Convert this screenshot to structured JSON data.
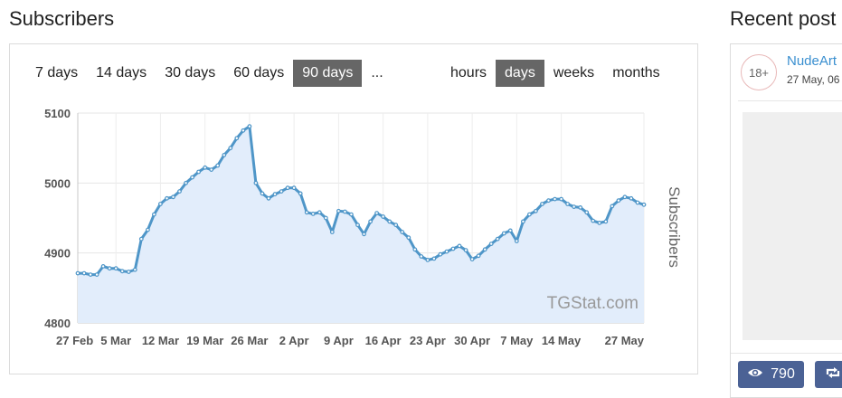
{
  "subscribers_title": "Subscribers",
  "recent_title": "Recent post",
  "ranges": {
    "periods": [
      {
        "label": "7 days",
        "active": false
      },
      {
        "label": "14 days",
        "active": false
      },
      {
        "label": "30 days",
        "active": false
      },
      {
        "label": "60 days",
        "active": false
      },
      {
        "label": "90 days",
        "active": true
      },
      {
        "label": "...",
        "active": false
      }
    ],
    "granularity": [
      {
        "label": "hours",
        "active": false
      },
      {
        "label": "days",
        "active": true
      },
      {
        "label": "weeks",
        "active": false
      },
      {
        "label": "months",
        "active": false
      }
    ]
  },
  "chart_data": {
    "type": "area",
    "ylabel": "Subscribers",
    "credit": "TGStat.com",
    "ylim": [
      4800,
      5100
    ],
    "yticks": [
      4800,
      4900,
      5000,
      5100
    ],
    "xlim": [
      "2018-02-27",
      "2018-05-27"
    ],
    "xtick_labels": [
      "27 Feb",
      "5 Mar",
      "12 Mar",
      "19 Mar",
      "26 Mar",
      "2 Apr",
      "9 Apr",
      "16 Apr",
      "23 Apr",
      "30 Apr",
      "7 May",
      "14 May",
      "27 May"
    ],
    "xtick_dates": [
      "2018-02-27",
      "2018-03-05",
      "2018-03-12",
      "2018-03-19",
      "2018-03-26",
      "2018-04-02",
      "2018-04-09",
      "2018-04-16",
      "2018-04-23",
      "2018-04-30",
      "2018-05-07",
      "2018-05-14",
      "2018-05-27"
    ],
    "grid": true,
    "series": [
      {
        "values": [
          [
            "2018-02-27",
            4871
          ],
          [
            "2018-02-28",
            4871
          ],
          [
            "2018-03-01",
            4869
          ],
          [
            "2018-03-02",
            4869
          ],
          [
            "2018-03-03",
            4881
          ],
          [
            "2018-03-04",
            4878
          ],
          [
            "2018-03-05",
            4878
          ],
          [
            "2018-03-06",
            4874
          ],
          [
            "2018-03-07",
            4873
          ],
          [
            "2018-03-08",
            4876
          ],
          [
            "2018-03-09",
            4920
          ],
          [
            "2018-03-10",
            4933
          ],
          [
            "2018-03-11",
            4955
          ],
          [
            "2018-03-12",
            4970
          ],
          [
            "2018-03-13",
            4978
          ],
          [
            "2018-03-14",
            4980
          ],
          [
            "2018-03-15",
            4988
          ],
          [
            "2018-03-16",
            5000
          ],
          [
            "2018-03-17",
            5008
          ],
          [
            "2018-03-18",
            5016
          ],
          [
            "2018-03-19",
            5022
          ],
          [
            "2018-03-20",
            5019
          ],
          [
            "2018-03-21",
            5025
          ],
          [
            "2018-03-22",
            5040
          ],
          [
            "2018-03-23",
            5050
          ],
          [
            "2018-03-24",
            5064
          ],
          [
            "2018-03-25",
            5075
          ],
          [
            "2018-03-26",
            5081
          ],
          [
            "2018-03-27",
            5000
          ],
          [
            "2018-03-28",
            4985
          ],
          [
            "2018-03-29",
            4978
          ],
          [
            "2018-03-30",
            4984
          ],
          [
            "2018-03-31",
            4988
          ],
          [
            "2018-04-01",
            4993
          ],
          [
            "2018-04-02",
            4993
          ],
          [
            "2018-04-03",
            4985
          ],
          [
            "2018-04-04",
            4958
          ],
          [
            "2018-04-05",
            4956
          ],
          [
            "2018-04-06",
            4958
          ],
          [
            "2018-04-07",
            4950
          ],
          [
            "2018-04-08",
            4930
          ],
          [
            "2018-04-09",
            4960
          ],
          [
            "2018-04-10",
            4959
          ],
          [
            "2018-04-11",
            4955
          ],
          [
            "2018-04-12",
            4940
          ],
          [
            "2018-04-13",
            4927
          ],
          [
            "2018-04-14",
            4945
          ],
          [
            "2018-04-15",
            4957
          ],
          [
            "2018-04-16",
            4952
          ],
          [
            "2018-04-17",
            4945
          ],
          [
            "2018-04-18",
            4940
          ],
          [
            "2018-04-19",
            4930
          ],
          [
            "2018-04-20",
            4922
          ],
          [
            "2018-04-21",
            4905
          ],
          [
            "2018-04-22",
            4895
          ],
          [
            "2018-04-23",
            4890
          ],
          [
            "2018-04-24",
            4892
          ],
          [
            "2018-04-25",
            4898
          ],
          [
            "2018-04-26",
            4902
          ],
          [
            "2018-04-27",
            4906
          ],
          [
            "2018-04-28",
            4910
          ],
          [
            "2018-04-29",
            4904
          ],
          [
            "2018-04-30",
            4891
          ],
          [
            "2018-05-01",
            4896
          ],
          [
            "2018-05-02",
            4905
          ],
          [
            "2018-05-03",
            4913
          ],
          [
            "2018-05-04",
            4920
          ],
          [
            "2018-05-05",
            4928
          ],
          [
            "2018-05-06",
            4932
          ],
          [
            "2018-05-07",
            4917
          ],
          [
            "2018-05-08",
            4945
          ],
          [
            "2018-05-09",
            4955
          ],
          [
            "2018-05-10",
            4960
          ],
          [
            "2018-05-11",
            4970
          ],
          [
            "2018-05-12",
            4975
          ],
          [
            "2018-05-13",
            4977
          ],
          [
            "2018-05-14",
            4977
          ],
          [
            "2018-05-15",
            4970
          ],
          [
            "2018-05-16",
            4966
          ],
          [
            "2018-05-17",
            4965
          ],
          [
            "2018-05-18",
            4958
          ],
          [
            "2018-05-19",
            4946
          ],
          [
            "2018-05-20",
            4943
          ],
          [
            "2018-05-21",
            4945
          ],
          [
            "2018-05-22",
            4967
          ],
          [
            "2018-05-23",
            4975
          ],
          [
            "2018-05-24",
            4980
          ],
          [
            "2018-05-25",
            4978
          ],
          [
            "2018-05-26",
            4972
          ],
          [
            "2018-05-27",
            4969
          ]
        ]
      }
    ],
    "line_color": "#4f96c8",
    "fill_color": "#e2edfb"
  },
  "recent_post": {
    "badge": "18+",
    "channel": "NudeArt",
    "date": "27 May, 06",
    "views": "790"
  },
  "icons": {
    "views": "eye-icon",
    "shares": "repost-icon"
  },
  "colors": {
    "active_button": "#666666",
    "action_button": "#4b6295",
    "link": "#3a8fd0"
  }
}
